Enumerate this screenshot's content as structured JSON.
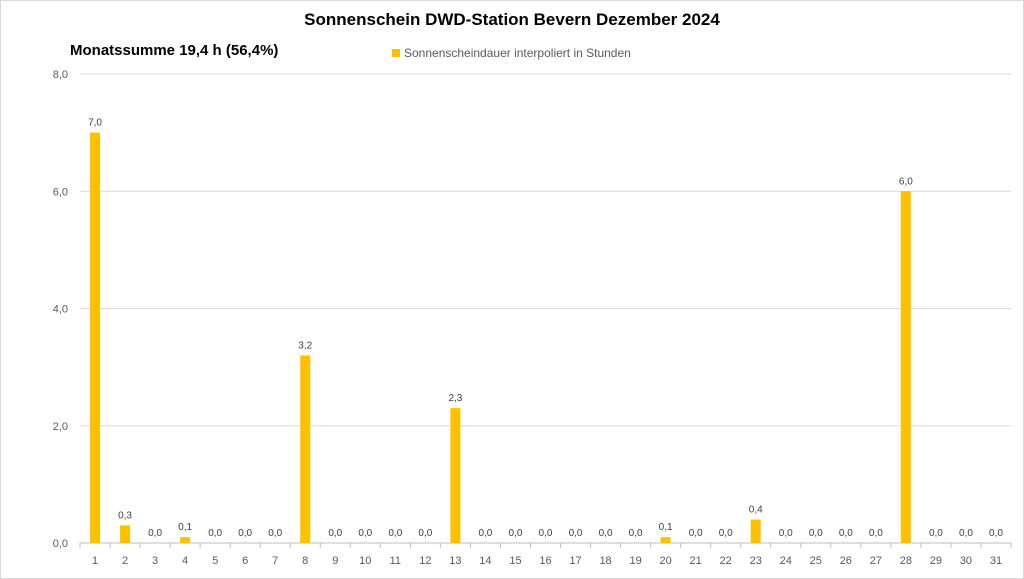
{
  "chart_data": {
    "type": "bar",
    "title": "Sonnenschein  DWD-Station  Bevern Dezember 2024",
    "subtitle": "Monatssumme 19,4 h (56,4%)",
    "xlabel": "",
    "ylabel": "",
    "ylim": [
      0,
      8
    ],
    "yticks": [
      "0,0",
      "2,0",
      "4,0",
      "6,0",
      "8,0"
    ],
    "grid": true,
    "legend_position": "top",
    "bar_color": "#FFC000",
    "categories": [
      "1",
      "2",
      "3",
      "4",
      "5",
      "6",
      "7",
      "8",
      "9",
      "10",
      "11",
      "12",
      "13",
      "14",
      "15",
      "16",
      "17",
      "18",
      "19",
      "20",
      "21",
      "22",
      "23",
      "24",
      "25",
      "26",
      "27",
      "28",
      "29",
      "30",
      "31"
    ],
    "series": [
      {
        "name": "Sonnenscheindauer interpoliert in Stunden",
        "values": [
          7.0,
          0.3,
          0.0,
          0.1,
          0.0,
          0.0,
          0.0,
          3.2,
          0.0,
          0.0,
          0.0,
          0.0,
          2.3,
          0.0,
          0.0,
          0.0,
          0.0,
          0.0,
          0.0,
          0.1,
          0.0,
          0.0,
          0.4,
          0.0,
          0.0,
          0.0,
          0.0,
          6.0,
          0.0,
          0.0,
          0.0
        ],
        "labels": [
          "7,0",
          "0,3",
          "0,0",
          "0,1",
          "0,0",
          "0,0",
          "0,0",
          "3,2",
          "0,0",
          "0,0",
          "0,0",
          "0,0",
          "2,3",
          "0,0",
          "0,0",
          "0,0",
          "0,0",
          "0,0",
          "0,0",
          "0,1",
          "0,0",
          "0,0",
          "0,4",
          "0,0",
          "0,0",
          "0,0",
          "0,0",
          "6,0",
          "0,0",
          "0,0",
          "0,0"
        ]
      }
    ]
  }
}
